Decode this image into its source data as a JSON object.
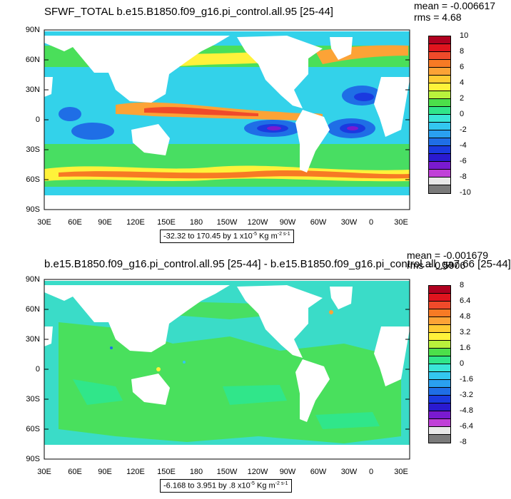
{
  "panel_top": {
    "title": "SFWF_TOTAL b.e15.B1850.f09_g16.pi_control.all.95 [25-44]",
    "mean": "mean = -0.006617",
    "rms": "rms = 4.68",
    "range_prefix": "-32.32 to 170.45 by 1 x10",
    "range_exp": "-5",
    "range_unit": " Kg m",
    "range_unit_exp": "-2 s-1",
    "lat_labels": [
      "90N",
      "60N",
      "30N",
      "0",
      "30S",
      "60S",
      "90S"
    ],
    "lon_labels": [
      "30E",
      "60E",
      "90E",
      "120E",
      "150E",
      "180",
      "150W",
      "120W",
      "90W",
      "60W",
      "30W",
      "0",
      "30E"
    ],
    "colorbar_labels": [
      "10",
      "8",
      "6",
      "4",
      "2",
      "0",
      "-2",
      "-4",
      "-6",
      "-8",
      "-10"
    ],
    "colorbar_colors": [
      "#b00020",
      "#e0141e",
      "#f04a2a",
      "#f77a24",
      "#fca336",
      "#ffcc33",
      "#fff23a",
      "#b9f23c",
      "#4ce04a",
      "#30e68a",
      "#3ae6d8",
      "#33c7f0",
      "#2aa0f0",
      "#1f6ee6",
      "#1a3ae0",
      "#2a1ad0",
      "#7a1ad0",
      "#c040d8",
      "#e8e8e8",
      "#7a7a7a"
    ]
  },
  "panel_bottom": {
    "title": "b.e15.B1850.f09_g16.pi_control.all.95 [25-44] - b.e15.B1850.f09_g16.pi_control.all_ga7.66 [25-44]",
    "mean": "mean = -0.001679",
    "rms": "rms = 0.5906",
    "range_prefix": "-6.168 to 3.951 by .8 x10",
    "range_exp": "-5",
    "range_unit": " Kg m",
    "range_unit_exp": "-2 s-1",
    "lat_labels": [
      "90N",
      "60N",
      "30N",
      "0",
      "30S",
      "60S",
      "90S"
    ],
    "lon_labels": [
      "30E",
      "60E",
      "90E",
      "120E",
      "150E",
      "180",
      "150W",
      "120W",
      "90W",
      "60W",
      "30W",
      "0",
      "30E"
    ],
    "colorbar_labels": [
      "8",
      "6.4",
      "4.8",
      "3.2",
      "1.6",
      "0",
      "-1.6",
      "-3.2",
      "-4.8",
      "-6.4",
      "-8"
    ],
    "colorbar_colors": [
      "#b00020",
      "#e0141e",
      "#f04a2a",
      "#f77a24",
      "#fca336",
      "#ffcc33",
      "#fff23a",
      "#b9f23c",
      "#4ce04a",
      "#30e68a",
      "#3ae6d8",
      "#33c7f0",
      "#2aa0f0",
      "#1f6ee6",
      "#1a3ae0",
      "#2a1ad0",
      "#7a1ad0",
      "#c040d8",
      "#e8e8e8",
      "#7a7a7a"
    ]
  },
  "colors": {
    "land": "#ffffff",
    "ocean_base_top": "#33d2ea",
    "ocean_base_bottom": "#3adcc8",
    "frame": "#000000"
  }
}
